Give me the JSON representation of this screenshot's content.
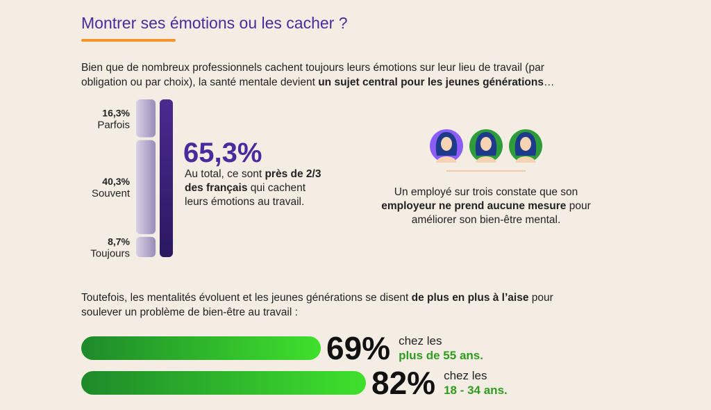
{
  "title": "Montrer ses émotions ou les cacher ?",
  "intro_lines": [
    [
      {
        "text": "Bien que de nombreux professionnels cachent toujours leurs émotions sur leur lieu de travail (par"
      }
    ],
    [
      {
        "text": "obligation ou par choix), la santé mentale devient "
      },
      {
        "text": "un sujet central pour les jeunes générations",
        "bold": true
      },
      {
        "text": "…"
      }
    ]
  ],
  "stack": {
    "segments": [
      {
        "label": "Parfois",
        "value": 16.3,
        "value_label": "16,3%"
      },
      {
        "label": "Souvent",
        "value": 40.3,
        "value_label": "40,3%"
      },
      {
        "label": "Toujours",
        "value": 8.7,
        "value_label": "8,7%"
      }
    ],
    "total": {
      "value": 65.3,
      "label": "65,3%"
    },
    "description_lines": [
      [
        {
          "text": "Au total, ce sont "
        },
        {
          "text": "près de 2/3",
          "bold": true
        }
      ],
      [
        {
          "text": "des français",
          "bold": true
        },
        {
          "text": " qui cachent"
        }
      ],
      [
        {
          "text": "leurs émotions au travail."
        }
      ]
    ]
  },
  "employee_lines": [
    [
      {
        "text": "Un employé sur trois constate que son"
      }
    ],
    [
      {
        "text": "employeur ne prend aucune mesure",
        "bold": true
      },
      {
        "text": " pour"
      }
    ],
    [
      {
        "text": "améliorer son bien-être mental."
      }
    ]
  ],
  "outro_lines": [
    [
      {
        "text": "Toutefois, les mentalités évoluent et les jeunes générations se disent "
      },
      {
        "text": "de plus en plus à l’aise",
        "bold": true
      },
      {
        "text": " pour"
      }
    ],
    [
      {
        "text": "soulever un problème de bien-être au travail :"
      }
    ]
  ],
  "bars": [
    {
      "value": 69,
      "value_label": "69%",
      "text": "chez les",
      "highlight": "plus de 55 ans."
    },
    {
      "value": 82,
      "value_label": "82%",
      "text": "chez les",
      "highlight": "18 - 34 ans."
    }
  ]
}
